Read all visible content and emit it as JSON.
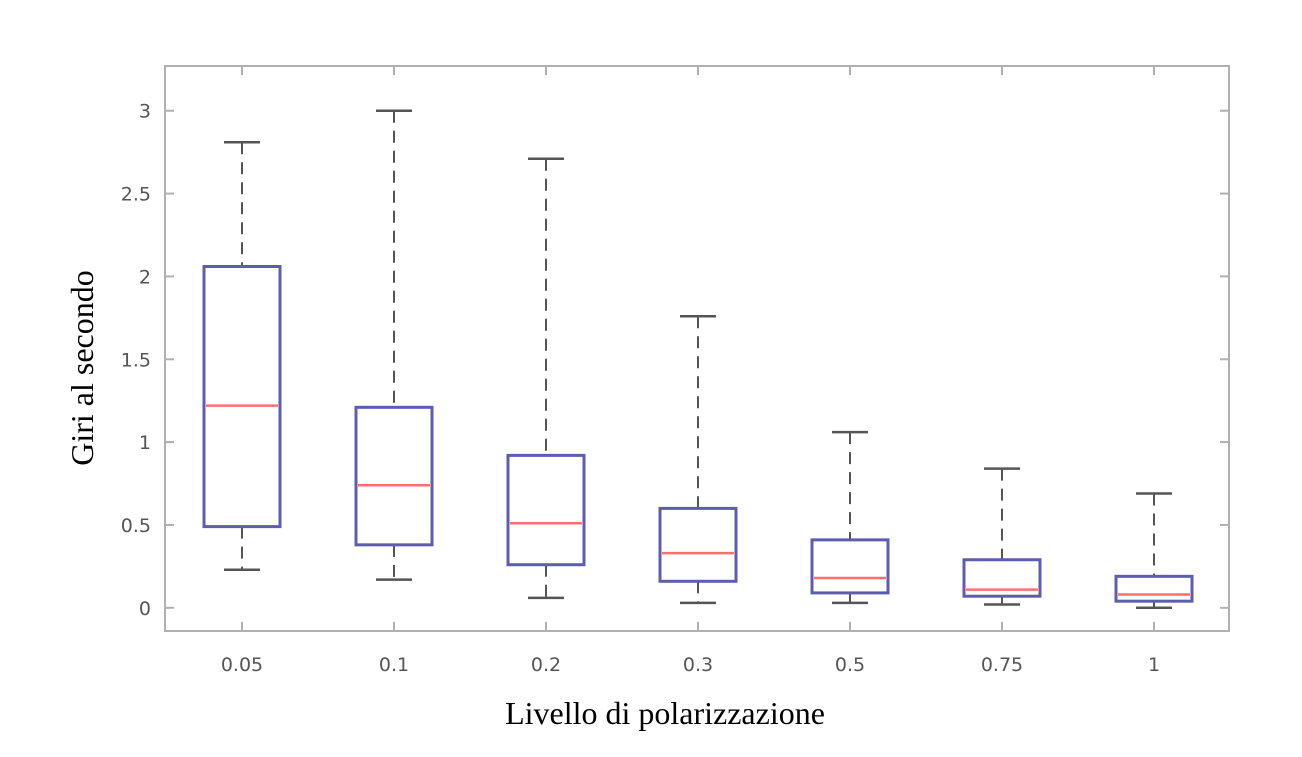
{
  "chart_data": {
    "type": "boxplot",
    "title": "",
    "xlabel": "Livello di polarizzazione",
    "ylabel": "Giri al secondo",
    "ylim": [
      -0.14,
      3.27
    ],
    "yticks": [
      0,
      0.5,
      1,
      1.5,
      2,
      2.5,
      3
    ],
    "ytick_labels": [
      "0",
      "0.5",
      "1",
      "1.5",
      "2",
      "2.5",
      "3"
    ],
    "categories": [
      "0.05",
      "0.1",
      "0.2",
      "0.3",
      "0.5",
      "0.75",
      "1"
    ],
    "boxes": [
      {
        "whisker_low": 0.23,
        "q1": 0.49,
        "median": 1.22,
        "q3": 2.06,
        "whisker_high": 2.81
      },
      {
        "whisker_low": 0.17,
        "q1": 0.38,
        "median": 0.74,
        "q3": 1.21,
        "whisker_high": 3.0
      },
      {
        "whisker_low": 0.06,
        "q1": 0.26,
        "median": 0.51,
        "q3": 0.92,
        "whisker_high": 2.71
      },
      {
        "whisker_low": 0.03,
        "q1": 0.16,
        "median": 0.33,
        "q3": 0.6,
        "whisker_high": 1.76
      },
      {
        "whisker_low": 0.03,
        "q1": 0.09,
        "median": 0.18,
        "q3": 0.41,
        "whisker_high": 1.06
      },
      {
        "whisker_low": 0.02,
        "q1": 0.07,
        "median": 0.11,
        "q3": 0.29,
        "whisker_high": 0.84
      },
      {
        "whisker_low": 0.0,
        "q1": 0.04,
        "median": 0.08,
        "q3": 0.19,
        "whisker_high": 0.69
      }
    ],
    "grid": false,
    "colors": {
      "box": "#5c5cb0",
      "median": "#ff6f6f",
      "whisker": "#555555",
      "frame": "#b0b0b0"
    }
  }
}
